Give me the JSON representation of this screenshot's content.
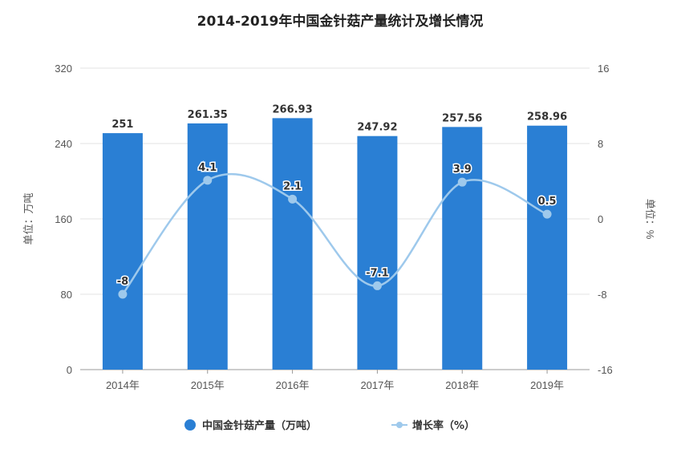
{
  "chart_data": {
    "type": "bar+line",
    "title": "2014-2019年中国金针菇产量统计及增长情况",
    "categories": [
      "2014年",
      "2015年",
      "2016年",
      "2017年",
      "2018年",
      "2019年"
    ],
    "series": [
      {
        "name": "中国金针菇产量（万吨）",
        "type": "bar",
        "axis": "left",
        "values": [
          251,
          261.35,
          266.93,
          247.92,
          257.56,
          258.96
        ],
        "labels": [
          "251",
          "261.35",
          "266.93",
          "247.92",
          "257.56",
          "258.96"
        ]
      },
      {
        "name": "增长率（%）",
        "type": "line",
        "axis": "right",
        "values": [
          -8,
          4.1,
          2.1,
          -7.1,
          3.9,
          0.5
        ],
        "labels": [
          "-8",
          "4.1",
          "2.1",
          "-7.1",
          "3.9",
          "0.5"
        ]
      }
    ],
    "ylabel": "单位：万吨",
    "y2label": "单位：%",
    "ylim": [
      0,
      320
    ],
    "y2lim": [
      -16,
      16
    ],
    "yticks": [
      "0",
      "80",
      "160",
      "240",
      "320"
    ],
    "y2ticks": [
      "-16",
      "-8",
      "0",
      "8",
      "16"
    ],
    "grid": true,
    "legend": "bottom",
    "colors": {
      "bar": "#2a7fd4",
      "line": "#9ec9ec"
    }
  }
}
